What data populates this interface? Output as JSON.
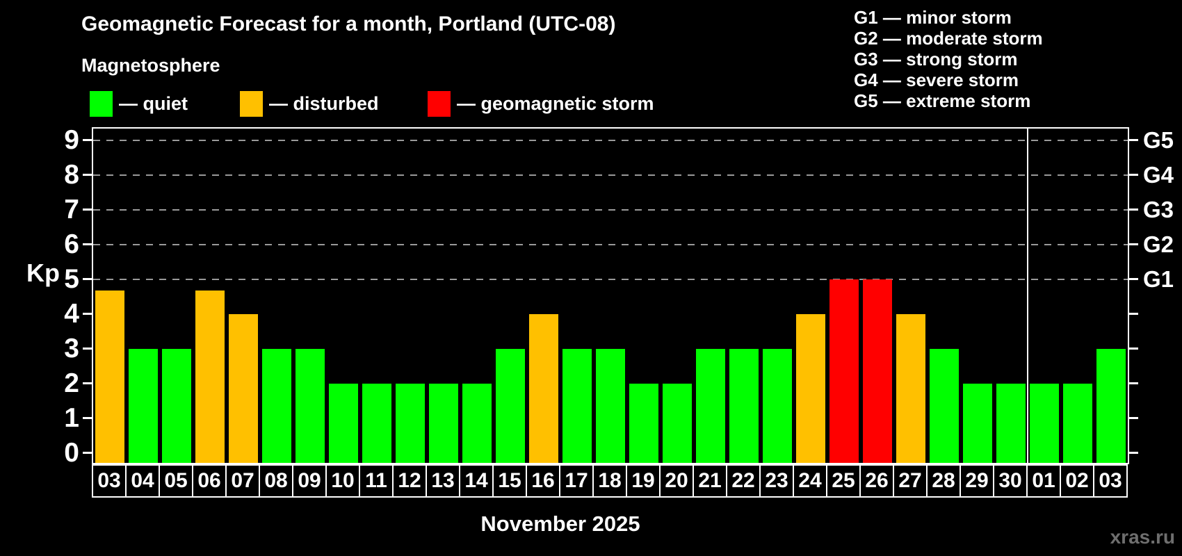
{
  "header": {
    "title": "Geomagnetic Forecast for a month, Portland (UTC-08)",
    "subtitle": "Magnetosphere"
  },
  "legend": {
    "items": [
      {
        "key": "quiet",
        "label": "— quiet",
        "color": "#00ff00"
      },
      {
        "key": "disturbed",
        "label": "— disturbed",
        "color": "#ffc000"
      },
      {
        "key": "storm",
        "label": "— geomagnetic storm",
        "color": "#ff0000"
      }
    ]
  },
  "g_legend": {
    "items": [
      "G1 — minor storm",
      "G2 — moderate storm",
      "G3 — strong storm",
      "G4 — severe storm",
      "G5 — extreme storm"
    ]
  },
  "chart_data": {
    "type": "bar",
    "title": "Geomagnetic Forecast for a month, Portland (UTC-08)",
    "ylabel": "Kp",
    "xlabel": "November 2025",
    "ylim": [
      -0.33,
      9.37
    ],
    "yticks": [
      "0",
      "1",
      "2",
      "3",
      "4",
      "5",
      "6",
      "7",
      "8",
      "9"
    ],
    "gridlines_at": [
      5,
      6,
      7,
      8,
      9
    ],
    "grid": "dashed, horizontal, only at storm levels 5-9",
    "legend_position": "top",
    "right_axis": [
      {
        "value": 5,
        "label": "G1"
      },
      {
        "value": 6,
        "label": "G2"
      },
      {
        "value": 7,
        "label": "G3"
      },
      {
        "value": 8,
        "label": "G4"
      },
      {
        "value": 9,
        "label": "G5"
      }
    ],
    "categories": [
      "03",
      "04",
      "05",
      "06",
      "07",
      "08",
      "09",
      "10",
      "11",
      "12",
      "13",
      "14",
      "15",
      "16",
      "17",
      "18",
      "19",
      "20",
      "21",
      "22",
      "23",
      "24",
      "25",
      "26",
      "27",
      "28",
      "29",
      "30",
      "01",
      "02",
      "03"
    ],
    "values": [
      4.67,
      3,
      3,
      4.67,
      4,
      3,
      3,
      2,
      2,
      2,
      2,
      2,
      3,
      4,
      3,
      3,
      2,
      2,
      3,
      3,
      3,
      4,
      5,
      5,
      4,
      3,
      2,
      2,
      2,
      2,
      3
    ],
    "statuses": [
      "disturbed",
      "quiet",
      "quiet",
      "disturbed",
      "disturbed",
      "quiet",
      "quiet",
      "quiet",
      "quiet",
      "quiet",
      "quiet",
      "quiet",
      "quiet",
      "disturbed",
      "quiet",
      "quiet",
      "quiet",
      "quiet",
      "quiet",
      "quiet",
      "quiet",
      "disturbed",
      "storm",
      "storm",
      "disturbed",
      "quiet",
      "quiet",
      "quiet",
      "quiet",
      "quiet",
      "quiet"
    ],
    "colors": {
      "quiet": "#00ff00",
      "disturbed": "#ffc000",
      "storm": "#ff0000"
    },
    "month_separator_after_index": 27,
    "month_label": "November 2025"
  },
  "watermark": "xras.ru"
}
